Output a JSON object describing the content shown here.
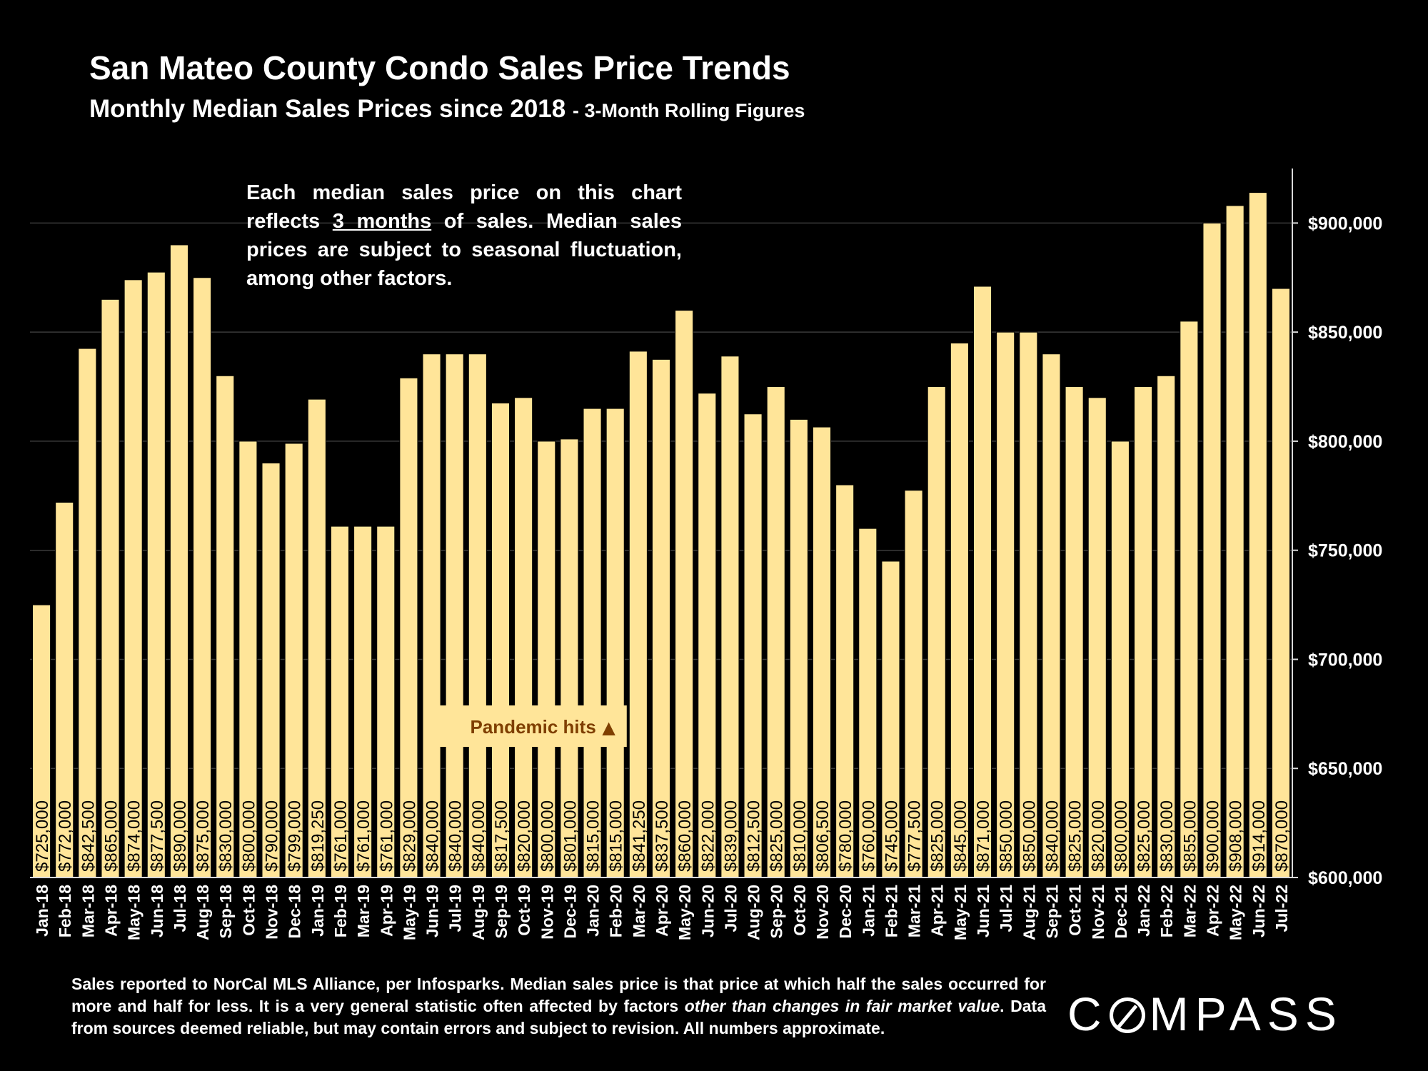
{
  "header": {
    "title": "San Mateo County Condo Sales Price Trends",
    "subtitle_main": "Monthly Median Sales Prices since 2018",
    "subtitle_suffix": "- 3-Month Rolling Figures"
  },
  "note": {
    "part1": "Each median sales price on this chart reflects ",
    "underlined": "3 months",
    "part2": " of sales. Median sales prices are subject to seasonal fluctuation, among other factors."
  },
  "footnote": {
    "part1": "Sales reported to NorCal MLS Alliance, per Infosparks. Median sales price is that price at which half the sales occurred for more and half for less. It is a very general statistic often affected by factors ",
    "italic": "other than changes in fair market value",
    "part2": ". Data from sources deemed reliable, but may contain errors and subject to revision. All numbers approximate."
  },
  "logo": {
    "before": "C",
    "after": "MPASS"
  },
  "colors": {
    "bar": "#ffe599",
    "bar_stroke": "#000000",
    "background": "#000000",
    "annotation": "#7f3f00",
    "text": "#ffffff"
  },
  "chart_data": {
    "type": "bar",
    "categories": [
      "Jan-18",
      "Feb-18",
      "Mar-18",
      "Apr-18",
      "May-18",
      "Jun-18",
      "Jul-18",
      "Aug-18",
      "Sep-18",
      "Oct-18",
      "Nov-18",
      "Dec-18",
      "Jan-19",
      "Feb-19",
      "Mar-19",
      "Apr-19",
      "May-19",
      "Jun-19",
      "Jul-19",
      "Aug-19",
      "Sep-19",
      "Oct-19",
      "Nov-19",
      "Dec-19",
      "Jan-20",
      "Feb-20",
      "Mar-20",
      "Apr-20",
      "May-20",
      "Jun-20",
      "Jul-20",
      "Aug-20",
      "Sep-20",
      "Oct-20",
      "Nov-20",
      "Dec-20",
      "Jan-21",
      "Feb-21",
      "Mar-21",
      "Apr-21",
      "May-21",
      "Jun-21",
      "Jul-21",
      "Aug-21",
      "Sep-21",
      "Oct-21",
      "Nov-21",
      "Dec-21",
      "Jan-22",
      "Feb-22",
      "Mar-22",
      "Apr-22",
      "May-22",
      "Jun-22",
      "Jul-22"
    ],
    "values": [
      725000,
      772000,
      842500,
      865000,
      874000,
      877500,
      890000,
      875000,
      830000,
      800000,
      790000,
      799000,
      819250,
      761000,
      761000,
      761000,
      829000,
      840000,
      840000,
      840000,
      817500,
      820000,
      800000,
      801000,
      815000,
      815000,
      841250,
      837500,
      860000,
      822000,
      839000,
      812500,
      825000,
      810000,
      806500,
      780000,
      760000,
      745000,
      777500,
      825000,
      845000,
      871000,
      850000,
      850000,
      840000,
      825000,
      820000,
      800000,
      825000,
      830000,
      855000,
      900000,
      908000,
      914000,
      870000
    ],
    "value_labels": [
      "$725,000",
      "$772,000",
      "$842,500",
      "$865,000",
      "$874,000",
      "$877,500",
      "$890,000",
      "$875,000",
      "$830,000",
      "$800,000",
      "$790,000",
      "$799,000",
      "$819,250",
      "$761,000",
      "$761,000",
      "$761,000",
      "$829,000",
      "$840,000",
      "$840,000",
      "$840,000",
      "$817,500",
      "$820,000",
      "$800,000",
      "$801,000",
      "$815,000",
      "$815,000",
      "$841,250",
      "$837,500",
      "$860,000",
      "$822,000",
      "$839,000",
      "$812,500",
      "$825,000",
      "$810,000",
      "$806,500",
      "$780,000",
      "$760,000",
      "$745,000",
      "$777,500",
      "$825,000",
      "$845,000",
      "$871,000",
      "$850,000",
      "$850,000",
      "$840,000",
      "$825,000",
      "$820,000",
      "$800,000",
      "$825,000",
      "$830,000",
      "$855,000",
      "$900,000",
      "$908,000",
      "$914,000",
      "$870,000"
    ],
    "ylim": [
      600000,
      925000
    ],
    "y_ticks": [
      600000,
      650000,
      700000,
      750000,
      800000,
      850000,
      900000
    ],
    "y_tick_labels": [
      "$600,000",
      "$650,000",
      "$700,000",
      "$750,000",
      "$800,000",
      "$850,000",
      "$900,000"
    ],
    "y_axis_position": "right",
    "grid": true,
    "annotation": {
      "text": "Pandemic hits",
      "marker": "▲",
      "near_category": "Mar-20"
    }
  }
}
